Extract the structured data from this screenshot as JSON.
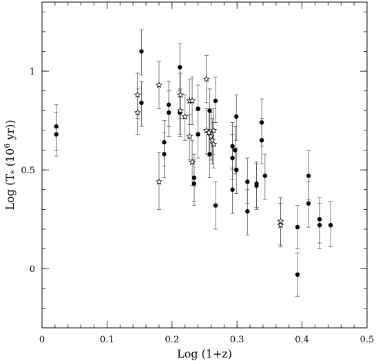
{
  "chart_data": {
    "type": "scatter",
    "title": "",
    "xlabel": "Log  (1+z)",
    "ylabel": "Log (T",
    "ylabel_sub": "*",
    "ylabel_rest": " (10",
    "ylabel_sup": "6",
    "ylabel_end": " yr))",
    "xlim": [
      0,
      0.5
    ],
    "ylim": [
      -0.3,
      1.35
    ],
    "xticks": [
      0,
      0.1,
      0.2,
      0.3,
      0.4,
      0.5
    ],
    "xtick_labels": [
      "0",
      "0.1",
      "0.2",
      "0.3",
      "0.4",
      "0.5"
    ],
    "yticks": [
      0,
      0.5,
      1
    ],
    "ytick_labels": [
      "0",
      "0.5",
      "1"
    ],
    "x_minor_step": 0.02,
    "y_minor_step": 0.1,
    "grid": false,
    "series": [
      {
        "marker": "filled-circle",
        "points": [
          {
            "x": 0.022,
            "y": 0.72,
            "lo": 0.6,
            "hi": 0.83
          },
          {
            "x": 0.022,
            "y": 0.68,
            "lo": 0.57,
            "hi": 0.79
          },
          {
            "x": 0.153,
            "y": 1.1,
            "lo": 0.98,
            "hi": 1.21
          },
          {
            "x": 0.153,
            "y": 0.84,
            "lo": 0.72,
            "hi": 0.95
          },
          {
            "x": 0.188,
            "y": 0.64,
            "lo": 0.52,
            "hi": 0.75
          },
          {
            "x": 0.188,
            "y": 0.58,
            "lo": 0.46,
            "hi": 0.69
          },
          {
            "x": 0.195,
            "y": 0.83,
            "lo": 0.72,
            "hi": 0.95
          },
          {
            "x": 0.195,
            "y": 0.79,
            "lo": 0.67,
            "hi": 0.9
          },
          {
            "x": 0.212,
            "y": 1.02,
            "lo": 0.9,
            "hi": 1.14
          },
          {
            "x": 0.212,
            "y": 0.79,
            "lo": 0.67,
            "hi": 0.91
          },
          {
            "x": 0.234,
            "y": 0.46,
            "lo": 0.34,
            "hi": 0.58
          },
          {
            "x": 0.234,
            "y": 0.43,
            "lo": 0.32,
            "hi": 0.55
          },
          {
            "x": 0.24,
            "y": 0.81,
            "lo": 0.69,
            "hi": 0.93
          },
          {
            "x": 0.24,
            "y": 0.68,
            "lo": 0.56,
            "hi": 0.8
          },
          {
            "x": 0.258,
            "y": 0.8,
            "lo": 0.68,
            "hi": 0.91
          },
          {
            "x": 0.258,
            "y": 0.58,
            "lo": 0.46,
            "hi": 0.69
          },
          {
            "x": 0.267,
            "y": 0.85,
            "lo": 0.74,
            "hi": 0.97
          },
          {
            "x": 0.267,
            "y": 0.32,
            "lo": 0.2,
            "hi": 0.44
          },
          {
            "x": 0.293,
            "y": 0.62,
            "lo": 0.5,
            "hi": 0.74
          },
          {
            "x": 0.293,
            "y": 0.56,
            "lo": 0.45,
            "hi": 0.68
          },
          {
            "x": 0.293,
            "y": 0.4,
            "lo": 0.28,
            "hi": 0.51
          },
          {
            "x": 0.297,
            "y": 0.6,
            "lo": 0.48,
            "hi": 0.72
          },
          {
            "x": 0.299,
            "y": 0.77,
            "lo": 0.65,
            "hi": 0.88
          },
          {
            "x": 0.299,
            "y": 0.5,
            "lo": 0.38,
            "hi": 0.61
          },
          {
            "x": 0.316,
            "y": 0.44,
            "lo": 0.33,
            "hi": 0.56
          },
          {
            "x": 0.316,
            "y": 0.29,
            "lo": 0.17,
            "hi": 0.4
          },
          {
            "x": 0.33,
            "y": 0.43,
            "lo": 0.31,
            "hi": 0.54
          },
          {
            "x": 0.33,
            "y": 0.42,
            "lo": 0.3,
            "hi": 0.53
          },
          {
            "x": 0.338,
            "y": 0.74,
            "lo": 0.62,
            "hi": 0.86
          },
          {
            "x": 0.338,
            "y": 0.65,
            "lo": 0.53,
            "hi": 0.76
          },
          {
            "x": 0.343,
            "y": 0.47,
            "lo": 0.35,
            "hi": 0.58
          },
          {
            "x": 0.393,
            "y": 0.21,
            "lo": 0.1,
            "hi": 0.32
          },
          {
            "x": 0.393,
            "y": -0.03,
            "lo": -0.14,
            "hi": 0.08
          },
          {
            "x": 0.41,
            "y": 0.47,
            "lo": 0.35,
            "hi": 0.6
          },
          {
            "x": 0.41,
            "y": 0.33,
            "lo": 0.21,
            "hi": 0.44
          },
          {
            "x": 0.427,
            "y": 0.25,
            "lo": 0.13,
            "hi": 0.36
          },
          {
            "x": 0.427,
            "y": 0.22,
            "lo": 0.1,
            "hi": 0.33
          },
          {
            "x": 0.444,
            "y": 0.22,
            "lo": 0.11,
            "hi": 0.34
          }
        ]
      },
      {
        "marker": "open-star",
        "points": [
          {
            "x": 0.147,
            "y": 0.88,
            "lo": 0.76,
            "hi": 0.99
          },
          {
            "x": 0.147,
            "y": 0.79,
            "lo": 0.68,
            "hi": 0.91
          },
          {
            "x": 0.18,
            "y": 0.93,
            "lo": 0.81,
            "hi": 1.05
          },
          {
            "x": 0.18,
            "y": 0.44,
            "lo": 0.3,
            "hi": 0.59
          },
          {
            "x": 0.213,
            "y": 0.88,
            "lo": 0.76,
            "hi": 0.99
          },
          {
            "x": 0.213,
            "y": 0.8,
            "lo": 0.68,
            "hi": 0.91
          },
          {
            "x": 0.22,
            "y": 0.77,
            "lo": 0.65,
            "hi": 0.88
          },
          {
            "x": 0.227,
            "y": 0.85,
            "lo": 0.73,
            "hi": 0.96
          },
          {
            "x": 0.227,
            "y": 0.67,
            "lo": 0.55,
            "hi": 0.78
          },
          {
            "x": 0.231,
            "y": 0.85,
            "lo": 0.73,
            "hi": 0.97
          },
          {
            "x": 0.231,
            "y": 0.54,
            "lo": 0.42,
            "hi": 0.65
          },
          {
            "x": 0.253,
            "y": 0.96,
            "lo": 0.84,
            "hi": 1.08
          },
          {
            "x": 0.253,
            "y": 0.7,
            "lo": 0.58,
            "hi": 0.81
          },
          {
            "x": 0.257,
            "y": 0.69,
            "lo": 0.57,
            "hi": 0.8
          },
          {
            "x": 0.26,
            "y": 0.67,
            "lo": 0.55,
            "hi": 0.79
          },
          {
            "x": 0.262,
            "y": 0.65,
            "lo": 0.53,
            "hi": 0.76
          },
          {
            "x": 0.264,
            "y": 0.7,
            "lo": 0.58,
            "hi": 0.81
          },
          {
            "x": 0.264,
            "y": 0.63,
            "lo": 0.51,
            "hi": 0.74
          },
          {
            "x": 0.367,
            "y": 0.24,
            "lo": 0.12,
            "hi": 0.36
          },
          {
            "x": 0.367,
            "y": 0.22,
            "lo": 0.11,
            "hi": 0.33
          }
        ]
      }
    ]
  }
}
